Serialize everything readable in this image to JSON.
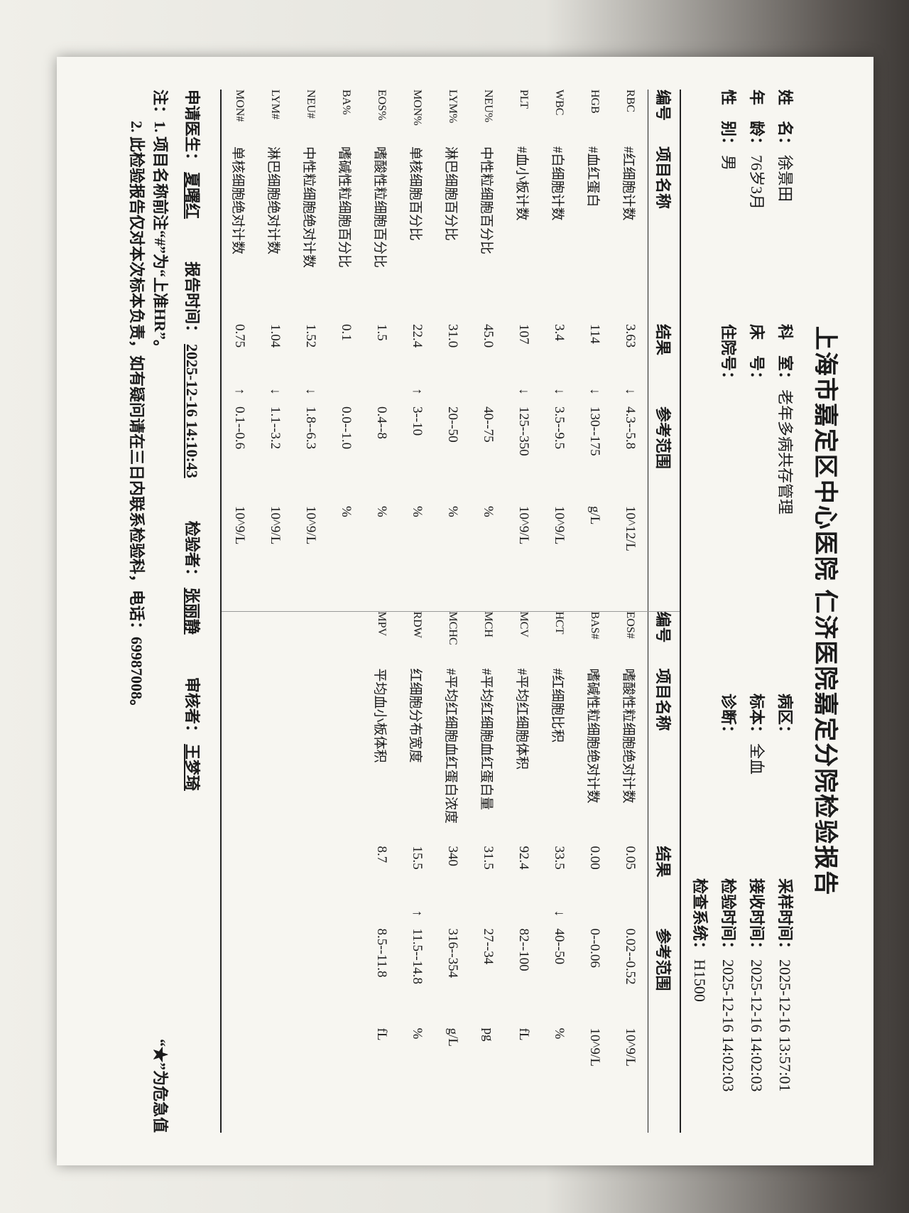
{
  "header": {
    "title": "上海市嘉定区中心医院 仁济医院嘉定分院检验报告"
  },
  "info": [
    {
      "label": "姓　名：",
      "value": "徐景田"
    },
    {
      "label": "科　室：",
      "value": "老年多病共存管理"
    },
    {
      "label": "病区："
    },
    {
      "label": "采样时间：",
      "value": "2025-12-16 13:57:01"
    },
    {
      "label": "年　龄：",
      "value": "76岁3月"
    },
    {
      "label": "床　号："
    },
    {
      "label": "标本：",
      "value": "全血"
    },
    {
      "label": "接收时间：",
      "value": "2025-12-16 14:02:03"
    },
    {
      "label": "性　别：",
      "value": "男"
    },
    {
      "label": "住院号："
    },
    {
      "label": "诊断："
    },
    {
      "label": "检验时间：",
      "value": "2025-12-16 14:02:03"
    },
    {
      "label": ""
    },
    {
      "label": ""
    },
    {
      "label": ""
    },
    {
      "label": "检查系统：",
      "value": "H1500"
    }
  ],
  "table": {
    "headers": [
      "编号",
      "项目名称",
      "结果",
      "参考范围"
    ],
    "left": [
      {
        "code": "RBC",
        "name": "#红细胞计数",
        "result": "3.63",
        "flag": "↓",
        "range": "4.3--5.8",
        "unit": "10^12/L"
      },
      {
        "code": "HGB",
        "name": "#血红蛋白",
        "result": "114",
        "flag": "↓",
        "range": "130--175",
        "unit": "g/L"
      },
      {
        "code": "WBC",
        "name": "#白细胞计数",
        "result": "3.4",
        "flag": "↓",
        "range": "3.5--9.5",
        "unit": "10^9/L"
      },
      {
        "code": "PLT",
        "name": "#血小板计数",
        "result": "107",
        "flag": "↓",
        "range": "125--350",
        "unit": "10^9/L"
      },
      {
        "code": "NEU%",
        "name": "中性粒细胞百分比",
        "result": "45.0",
        "range": "40--75",
        "unit": "%"
      },
      {
        "code": "LYM%",
        "name": "淋巴细胞百分比",
        "result": "31.0",
        "range": "20--50",
        "unit": "%"
      },
      {
        "code": "MON%",
        "name": "单核细胞百分比",
        "result": "22.4",
        "flag": "↑",
        "range": "3--10",
        "unit": "%"
      },
      {
        "code": "EOS%",
        "name": "嗜酸性粒细胞百分比",
        "result": "1.5",
        "range": "0.4--8",
        "unit": "%"
      },
      {
        "code": "BA%",
        "name": "嗜碱性粒细胞百分比",
        "result": "0.1",
        "range": "0.0--1.0",
        "unit": "%"
      },
      {
        "code": "NEU#",
        "name": "中性粒细胞绝对计数",
        "result": "1.52",
        "flag": "↓",
        "range": "1.8--6.3",
        "unit": "10^9/L"
      },
      {
        "code": "LYM#",
        "name": "淋巴细胞绝对计数",
        "result": "1.04",
        "flag": "↓",
        "range": "1.1--3.2",
        "unit": "10^9/L"
      },
      {
        "code": "MON#",
        "name": "单核细胞绝对计数",
        "result": "0.75",
        "flag": "↑",
        "range": "0.1--0.6",
        "unit": "10^9/L"
      }
    ],
    "right": [
      {
        "code": "EOS#",
        "name": "嗜酸性粒细胞绝对计数",
        "result": "0.05",
        "range": "0.02--0.52",
        "unit": "10^9/L"
      },
      {
        "code": "BAS#",
        "name": "嗜碱性粒细胞绝对计数",
        "result": "0.00",
        "range": "0--0.06",
        "unit": "10^9/L"
      },
      {
        "code": "HCT",
        "name": "#红细胞比积",
        "result": "33.5",
        "flag": "↓",
        "range": "40--50",
        "unit": "%"
      },
      {
        "code": "MCV",
        "name": "#平均红细胞体积",
        "result": "92.4",
        "range": "82--100",
        "unit": "fL"
      },
      {
        "code": "MCH",
        "name": "#平均红细胞血红蛋白量",
        "result": "31.5",
        "range": "27--34",
        "unit": "pg"
      },
      {
        "code": "MCHC",
        "name": "#平均红细胞血红蛋白浓度",
        "result": "340",
        "range": "316--354",
        "unit": "g/L"
      },
      {
        "code": "RDW",
        "name": "红细胞分布宽度",
        "result": "15.5",
        "flag": "↑",
        "range": "11.5--14.8",
        "unit": "%"
      },
      {
        "code": "MPV",
        "name": "平均血小板体积",
        "result": "8.7",
        "range": "8.5--11.8",
        "unit": "fL"
      }
    ]
  },
  "footer": [
    {
      "label": "申请医生：",
      "value": "夏曙红"
    },
    {
      "label": "报告时间：",
      "value": "2025-12-16 14:10:43"
    },
    {
      "label": "检验者：",
      "value": "张丽静"
    },
    {
      "label": "审核者：",
      "value": "王梦琦"
    }
  ],
  "notes": {
    "line1": "注：1. 项目名称前注“#”为“上准HR”。",
    "critical": "“★”为危急值",
    "line2": "　　2. 此检验报告仅对本次标本负责，如有疑问请在三日内联系检验科，电话：69987008。"
  }
}
